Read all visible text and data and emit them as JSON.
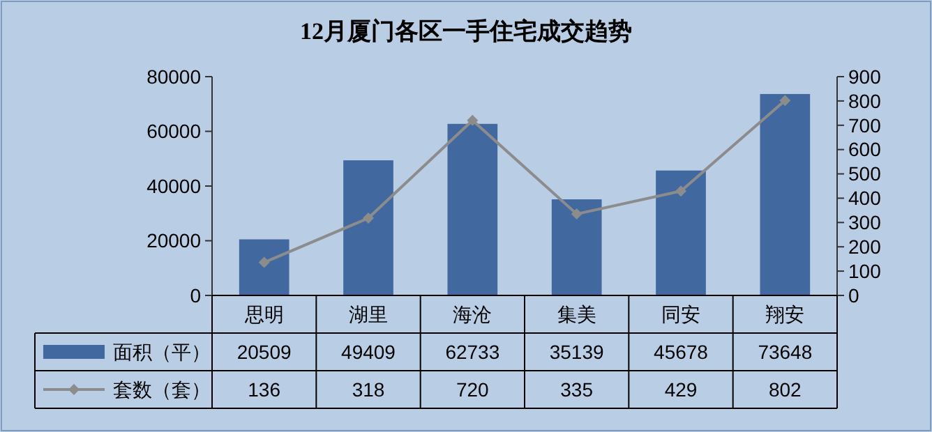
{
  "chart_data": {
    "type": "bar",
    "title": "12月厦门各区一手住宅成交趋势",
    "categories": [
      "思明",
      "湖里",
      "海沧",
      "集美",
      "同安",
      "翔安"
    ],
    "series": [
      {
        "name": "面积（平）",
        "color": "#4169a0",
        "values": [
          20509,
          49409,
          62733,
          35139,
          45678,
          73648
        ]
      },
      {
        "name": "套数（套）",
        "type": "line",
        "axis": "y2",
        "color": "#8c8c8c",
        "marker": "diamond",
        "values": [
          136,
          318,
          720,
          335,
          429,
          802
        ]
      }
    ],
    "ylim": [
      0,
      80000
    ],
    "yticks": [
      0,
      20000,
      40000,
      60000,
      80000
    ],
    "y2lim": [
      0,
      900
    ],
    "y2ticks": [
      0,
      100,
      200,
      300,
      400,
      500,
      600,
      700,
      800,
      900
    ],
    "data_labels": true,
    "legend": "bottom"
  }
}
